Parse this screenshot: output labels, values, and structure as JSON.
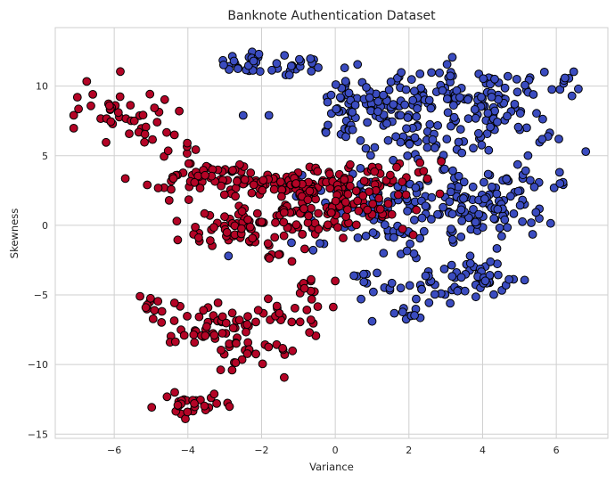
{
  "chart_data": {
    "type": "scatter",
    "title": "Banknote Authentication Dataset",
    "xlabel": "Variance",
    "ylabel": "Skewness",
    "xlim": [
      -7.6,
      7.4
    ],
    "ylim": [
      -15.3,
      14.2
    ],
    "xticks": [
      -6,
      -4,
      -2,
      0,
      2,
      4,
      6
    ],
    "yticks": [
      -15,
      -10,
      -5,
      0,
      5,
      10
    ],
    "grid": true,
    "legend": "none",
    "colors": {
      "class_a": "#3b4cc0",
      "class_b": "#b40426",
      "edge": "#000000",
      "grid": "#cfcfcf"
    },
    "series": [
      {
        "color": "#3b4cc0",
        "clusters": [
          {
            "cx": -2.4,
            "cy": 11.6,
            "sx": 0.3,
            "sy": 0.6,
            "n": 22
          },
          {
            "cx": -1.3,
            "cy": 11.2,
            "sx": 0.6,
            "sy": 0.6,
            "n": 18
          },
          {
            "cx": 0.3,
            "cy": 8.6,
            "sx": 0.5,
            "sy": 1.2,
            "n": 35
          },
          {
            "cx": 1.4,
            "cy": 7.6,
            "sx": 0.7,
            "sy": 1.4,
            "n": 50
          },
          {
            "cx": 3.2,
            "cy": 9.4,
            "sx": 1.0,
            "sy": 1.0,
            "n": 80
          },
          {
            "cx": 4.5,
            "cy": 7.6,
            "sx": 0.8,
            "sy": 1.2,
            "n": 50
          },
          {
            "cx": 2.4,
            "cy": 6.2,
            "sx": 0.9,
            "sy": 0.8,
            "n": 40
          },
          {
            "cx": 5.6,
            "cy": 9.8,
            "sx": 0.4,
            "sy": 0.6,
            "n": 14
          },
          {
            "cx": 5.0,
            "cy": 3.5,
            "sx": 0.6,
            "sy": 0.7,
            "n": 18
          },
          {
            "cx": 3.3,
            "cy": 2.4,
            "sx": 1.0,
            "sy": 0.8,
            "n": 60
          },
          {
            "cx": 4.2,
            "cy": 0.3,
            "sx": 0.8,
            "sy": 1.0,
            "n": 55
          },
          {
            "cx": 1.8,
            "cy": 0.2,
            "sx": 0.8,
            "sy": 1.3,
            "n": 45
          },
          {
            "cx": 0.8,
            "cy": 1.8,
            "sx": 0.6,
            "sy": 1.2,
            "n": 25
          },
          {
            "cx": 3.9,
            "cy": -3.6,
            "sx": 0.6,
            "sy": 0.7,
            "n": 35
          },
          {
            "cx": 2.6,
            "cy": -4.4,
            "sx": 0.8,
            "sy": 0.6,
            "n": 30
          },
          {
            "cx": 1.9,
            "cy": -6.4,
            "sx": 0.3,
            "sy": 0.3,
            "n": 10
          },
          {
            "cx": 0.6,
            "cy": -3.5,
            "sx": 0.3,
            "sy": 0.3,
            "n": 6
          },
          {
            "cx": -0.5,
            "cy": 2.0,
            "sx": 0.6,
            "sy": 1.2,
            "n": 12
          },
          {
            "cx": -0.3,
            "cy": -0.8,
            "sx": 0.4,
            "sy": 0.7,
            "n": 8
          }
        ],
        "points": [
          [
            6.8,
            5.3
          ],
          [
            6.6,
            9.8
          ],
          [
            6.1,
            3.0
          ],
          [
            -2.5,
            7.9
          ],
          [
            -1.8,
            7.9
          ],
          [
            -0.2,
            7.2
          ],
          [
            1.0,
            -6.9
          ],
          [
            0.7,
            -5.3
          ],
          [
            -0.9,
            3.6
          ],
          [
            -2.9,
            -2.2
          ]
        ]
      },
      {
        "color": "#b40426",
        "clusters": [
          {
            "cx": -6.2,
            "cy": 8.2,
            "sx": 0.5,
            "sy": 0.9,
            "n": 28
          },
          {
            "cx": -5.1,
            "cy": 7.3,
            "sx": 0.4,
            "sy": 0.6,
            "n": 14
          },
          {
            "cx": -4.2,
            "cy": 5.2,
            "sx": 0.3,
            "sy": 0.8,
            "n": 10
          },
          {
            "cx": -3.8,
            "cy": 3.3,
            "sx": 0.8,
            "sy": 0.5,
            "n": 30
          },
          {
            "cx": -2.2,
            "cy": 3.0,
            "sx": 1.0,
            "sy": 0.6,
            "n": 60
          },
          {
            "cx": -0.6,
            "cy": 2.8,
            "sx": 0.8,
            "sy": 0.6,
            "n": 40
          },
          {
            "cx": 0.9,
            "cy": 3.4,
            "sx": 0.8,
            "sy": 0.7,
            "n": 35
          },
          {
            "cx": -2.7,
            "cy": -0.4,
            "sx": 0.6,
            "sy": 0.7,
            "n": 35
          },
          {
            "cx": -1.6,
            "cy": 0.3,
            "sx": 0.6,
            "sy": 0.7,
            "n": 35
          },
          {
            "cx": -0.4,
            "cy": 0.9,
            "sx": 0.6,
            "sy": 0.8,
            "n": 40
          },
          {
            "cx": 0.9,
            "cy": 1.6,
            "sx": 0.6,
            "sy": 0.8,
            "n": 35
          },
          {
            "cx": -1.4,
            "cy": -2.0,
            "sx": 0.3,
            "sy": 0.3,
            "n": 8
          },
          {
            "cx": -4.9,
            "cy": -5.6,
            "sx": 0.4,
            "sy": 0.4,
            "n": 10
          },
          {
            "cx": -3.0,
            "cy": -7.0,
            "sx": 0.8,
            "sy": 0.8,
            "n": 40
          },
          {
            "cx": -1.6,
            "cy": -6.4,
            "sx": 0.5,
            "sy": 0.6,
            "n": 20
          },
          {
            "cx": -2.1,
            "cy": -9.2,
            "sx": 0.5,
            "sy": 0.8,
            "n": 20
          },
          {
            "cx": -3.9,
            "cy": -8.1,
            "sx": 0.5,
            "sy": 0.3,
            "n": 12
          },
          {
            "cx": -3.9,
            "cy": -12.9,
            "sx": 0.6,
            "sy": 0.4,
            "n": 28
          },
          {
            "cx": -0.7,
            "cy": -4.6,
            "sx": 0.2,
            "sy": 0.7,
            "n": 10
          }
        ],
        "points": [
          [
            -7.0,
            9.2
          ],
          [
            -5.3,
            -5.1
          ],
          [
            -4.3,
            0.3
          ],
          [
            0.0,
            -4.0
          ],
          [
            2.4,
            3.9
          ],
          [
            2.3,
            4.5
          ],
          [
            -0.7,
            -7.7
          ],
          [
            -2.8,
            -10.4
          ]
        ]
      }
    ]
  }
}
